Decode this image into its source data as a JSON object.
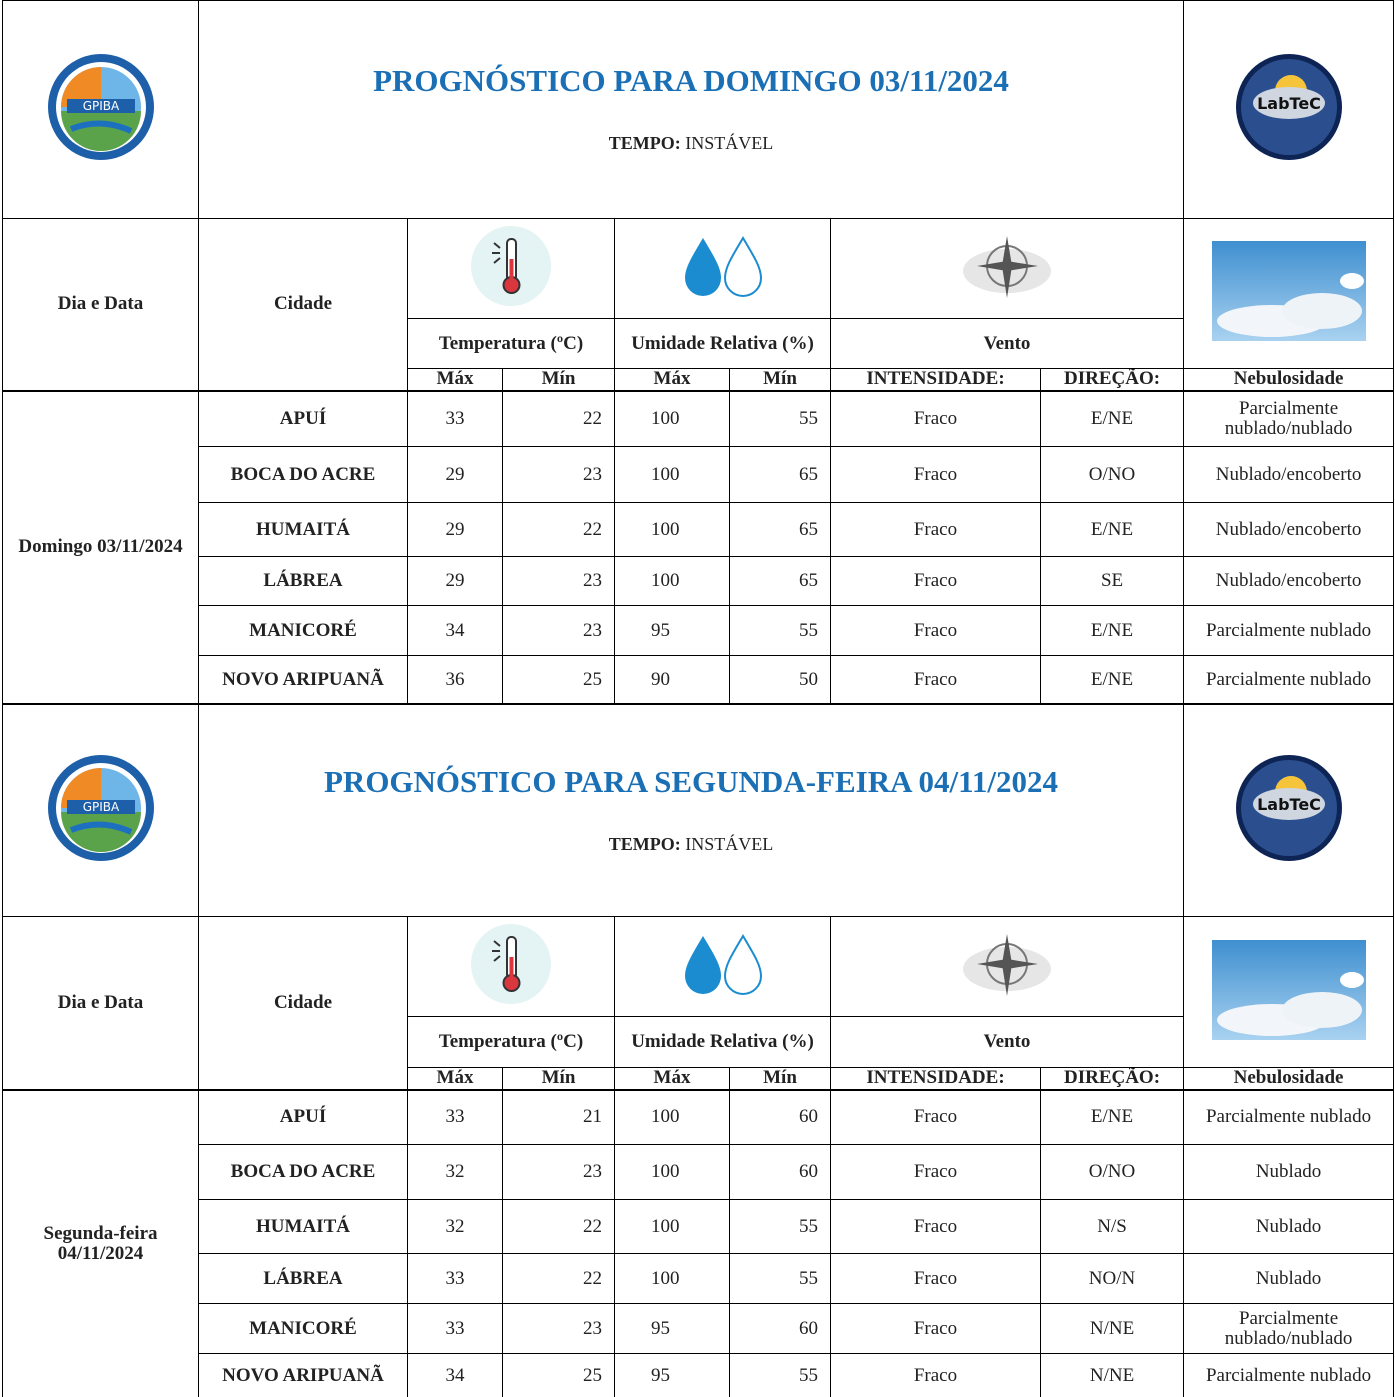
{
  "sections": [
    {
      "header": {
        "logo_left": "GPIBA",
        "title": "PROGNÓSTICO PARA DOMINGO 03/11/2024",
        "weather_label": "TEMPO:",
        "weather_value": "INSTÁVEL",
        "logo_right": "LabTeC"
      },
      "columns": {
        "day": "Dia e Data",
        "city": "Cidade",
        "temperature": "Temperatura (ºC)",
        "humidity": "Umidade Relativa (%)",
        "wind": "Vento",
        "max": "Máx",
        "min": "Mín",
        "intensity": "INTENSIDADE:",
        "direction": "DIREÇÃO:",
        "cloudiness": "Nebulosidade"
      },
      "day": "Domingo 03/11/2024",
      "rows": [
        [
          "APUÍ",
          "33",
          "22",
          "100",
          "55",
          "Fraco",
          "E/NE",
          "Parcialmente nublado/nublado"
        ],
        [
          "BOCA DO ACRE",
          "29",
          "23",
          "100",
          "65",
          "Fraco",
          "O/NO",
          "Nublado/encoberto"
        ],
        [
          "HUMAITÁ",
          "29",
          "22",
          "100",
          "65",
          "Fraco",
          "E/NE",
          "Nublado/encoberto"
        ],
        [
          "LÁBREA",
          "29",
          "23",
          "100",
          "65",
          "Fraco",
          "SE",
          "Nublado/encoberto"
        ],
        [
          "MANICORÉ",
          "34",
          "23",
          "95",
          "55",
          "Fraco",
          "E/NE",
          "Parcialmente nublado"
        ],
        [
          "NOVO ARIPUANÃ",
          "36",
          "25",
          "90",
          "50",
          "Fraco",
          "E/NE",
          "Parcialmente nublado"
        ]
      ]
    },
    {
      "header": {
        "logo_left": "GPIBA",
        "title": "PROGNÓSTICO PARA SEGUNDA-FEIRA 04/11/2024",
        "weather_label": "TEMPO:",
        "weather_value": "INSTÁVEL",
        "logo_right": "LabTeC"
      },
      "columns": {
        "day": "Dia e Data",
        "city": "Cidade",
        "temperature": "Temperatura (ºC)",
        "humidity": "Umidade Relativa (%)",
        "wind": "Vento",
        "max": "Máx",
        "min": "Mín",
        "intensity": "INTENSIDADE:",
        "direction": "DIREÇÃO:",
        "cloudiness": "Nebulosidade"
      },
      "day": "Segunda-feira 04/11/2024",
      "rows": [
        [
          "APUÍ",
          "33",
          "21",
          "100",
          "60",
          "Fraco",
          "E/NE",
          "Parcialmente nublado"
        ],
        [
          "BOCA DO ACRE",
          "32",
          "23",
          "100",
          "60",
          "Fraco",
          "O/NO",
          "Nublado"
        ],
        [
          "HUMAITÁ",
          "32",
          "22",
          "100",
          "55",
          "Fraco",
          "N/S",
          "Nublado"
        ],
        [
          "LÁBREA",
          "33",
          "22",
          "100",
          "55",
          "Fraco",
          "NO/N",
          "Nublado"
        ],
        [
          "MANICORÉ",
          "33",
          "23",
          "95",
          "60",
          "Fraco",
          "N/NE",
          "Parcialmente nublado/nublado"
        ],
        [
          "NOVO ARIPUANÃ",
          "34",
          "25",
          "95",
          "55",
          "Fraco",
          "N/NE",
          "Parcialmente nublado"
        ]
      ]
    }
  ]
}
